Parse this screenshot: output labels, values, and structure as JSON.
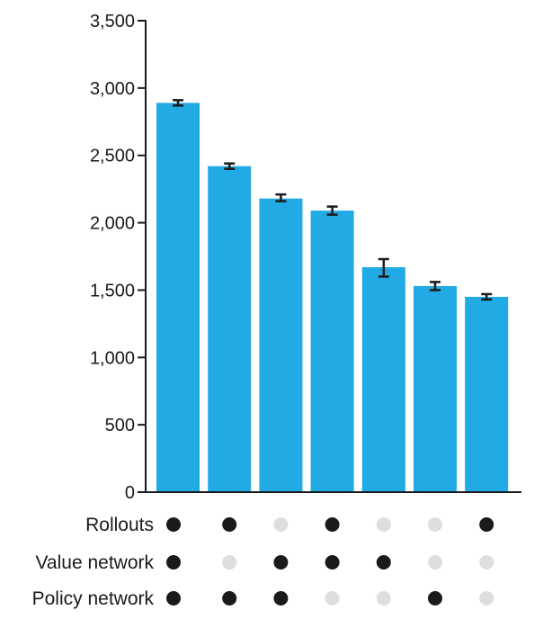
{
  "chart_data": {
    "type": "bar",
    "title": "",
    "xlabel": "",
    "ylabel": "",
    "ylim": [
      0,
      3500
    ],
    "yticks": [
      0,
      500,
      1000,
      1500,
      2000,
      2500,
      3000,
      3500
    ],
    "ytick_labels": [
      "0",
      "500",
      "1,000",
      "1,500",
      "2,000",
      "2,500",
      "3,000",
      "3,500"
    ],
    "grid": false,
    "bar_color": "#22aae4",
    "values": [
      2890,
      2420,
      2180,
      2090,
      1670,
      1530,
      1450
    ],
    "error": [
      [
        2870,
        2910
      ],
      [
        2400,
        2440
      ],
      [
        2160,
        2210
      ],
      [
        2060,
        2120
      ],
      [
        1600,
        1730
      ],
      [
        1500,
        1560
      ],
      [
        1430,
        1470
      ]
    ],
    "config_rows": [
      {
        "label": "Rollouts",
        "states": [
          true,
          true,
          false,
          true,
          false,
          false,
          true
        ]
      },
      {
        "label": "Value network",
        "states": [
          true,
          false,
          true,
          true,
          true,
          false,
          false
        ]
      },
      {
        "label": "Policy network",
        "states": [
          true,
          true,
          true,
          false,
          false,
          true,
          false
        ]
      }
    ],
    "dot_on_color": "#1a1a1a",
    "dot_off_color": "#dedede"
  }
}
